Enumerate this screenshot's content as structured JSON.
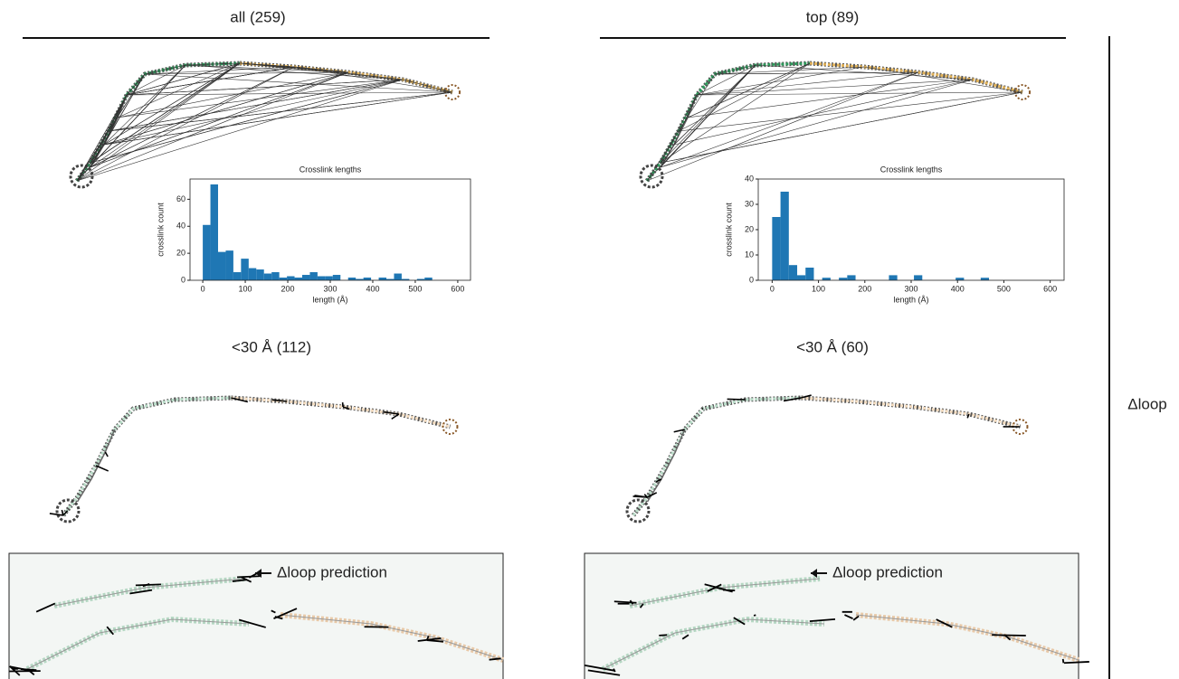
{
  "columns": [
    {
      "title": "all (259)",
      "subtitle": "<30 Å (112)",
      "annotation": "Δloop prediction"
    },
    {
      "title": "top (89)",
      "subtitle": "<30 Å (60)",
      "annotation": "Δloop prediction"
    }
  ],
  "row_label": "Δloop",
  "chart_data": [
    {
      "type": "histogram",
      "title": "Crosslink lengths",
      "x_label": "length (Å)",
      "y_label": "crosslink count",
      "color": "#1f77b4",
      "bins": [
        0,
        18,
        36,
        54,
        72,
        90,
        108,
        126,
        144,
        162,
        180,
        198,
        216,
        234,
        252,
        270,
        288,
        306,
        324,
        342,
        360,
        378,
        396,
        414,
        432,
        450,
        468,
        486,
        504,
        522,
        540
      ],
      "values": [
        41,
        71,
        21,
        22,
        6,
        16,
        9,
        8,
        5,
        6,
        2,
        3,
        2,
        4,
        6,
        3,
        3,
        4,
        0,
        2,
        1,
        2,
        0,
        2,
        1,
        5,
        1,
        0,
        1,
        2
      ],
      "xlim": [
        -30,
        630
      ],
      "xticks": [
        0,
        100,
        200,
        300,
        400,
        500,
        600
      ],
      "ylim": [
        0,
        75
      ],
      "yticks": [
        0,
        20,
        40,
        60
      ]
    },
    {
      "type": "histogram",
      "title": "Crosslink lengths",
      "x_label": "length (Å)",
      "y_label": "crosslink count",
      "color": "#1f77b4",
      "bins": [
        0,
        18,
        36,
        54,
        72,
        90,
        108,
        126,
        144,
        162,
        180,
        198,
        216,
        234,
        252,
        270,
        288,
        306,
        324,
        342,
        360,
        378,
        396,
        414,
        432,
        450,
        468,
        486,
        504,
        522,
        540
      ],
      "values": [
        25,
        35,
        6,
        2,
        5,
        0,
        1,
        0,
        1,
        2,
        0,
        0,
        0,
        0,
        2,
        0,
        0,
        2,
        0,
        0,
        0,
        0,
        1,
        0,
        0,
        1,
        0,
        0,
        0,
        0
      ],
      "xlim": [
        -30,
        630
      ],
      "xticks": [
        0,
        100,
        200,
        300,
        400,
        500,
        600
      ],
      "ylim": [
        0,
        40
      ],
      "yticks": [
        0,
        10,
        20,
        30,
        40
      ]
    }
  ]
}
